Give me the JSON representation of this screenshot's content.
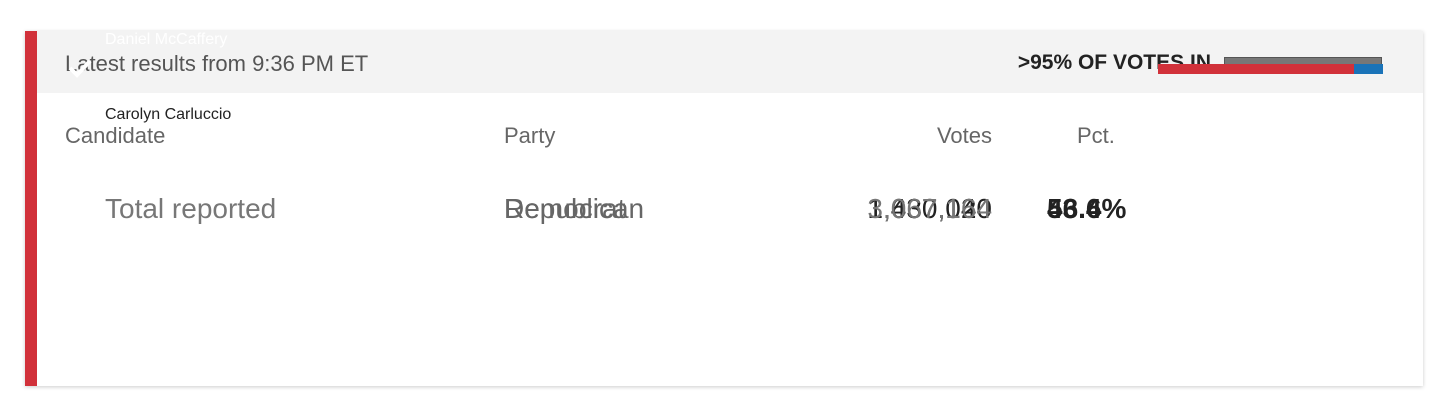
{
  "header": {
    "updated": "Latest results from 9:36 PM ET",
    "reporting": ">95% OF VOTES IN"
  },
  "table": {
    "columns": [
      "Candidate",
      "Party",
      "Votes",
      "Pct."
    ],
    "rows": [
      {
        "candidate": "Daniel McCaffery",
        "party": "Democrat",
        "votes": "1,637,044",
        "pct": 53.4,
        "pct_label": "53.4%",
        "color": "#1a73b8",
        "winner": true
      },
      {
        "candidate": "Carolyn Carluccio",
        "party": "Republican",
        "votes": "1,430,120",
        "pct": 46.6,
        "color": "#d1313a",
        "winner": false
      }
    ],
    "total": {
      "label": "Total reported",
      "votes": "3,067,164"
    }
  }
}
